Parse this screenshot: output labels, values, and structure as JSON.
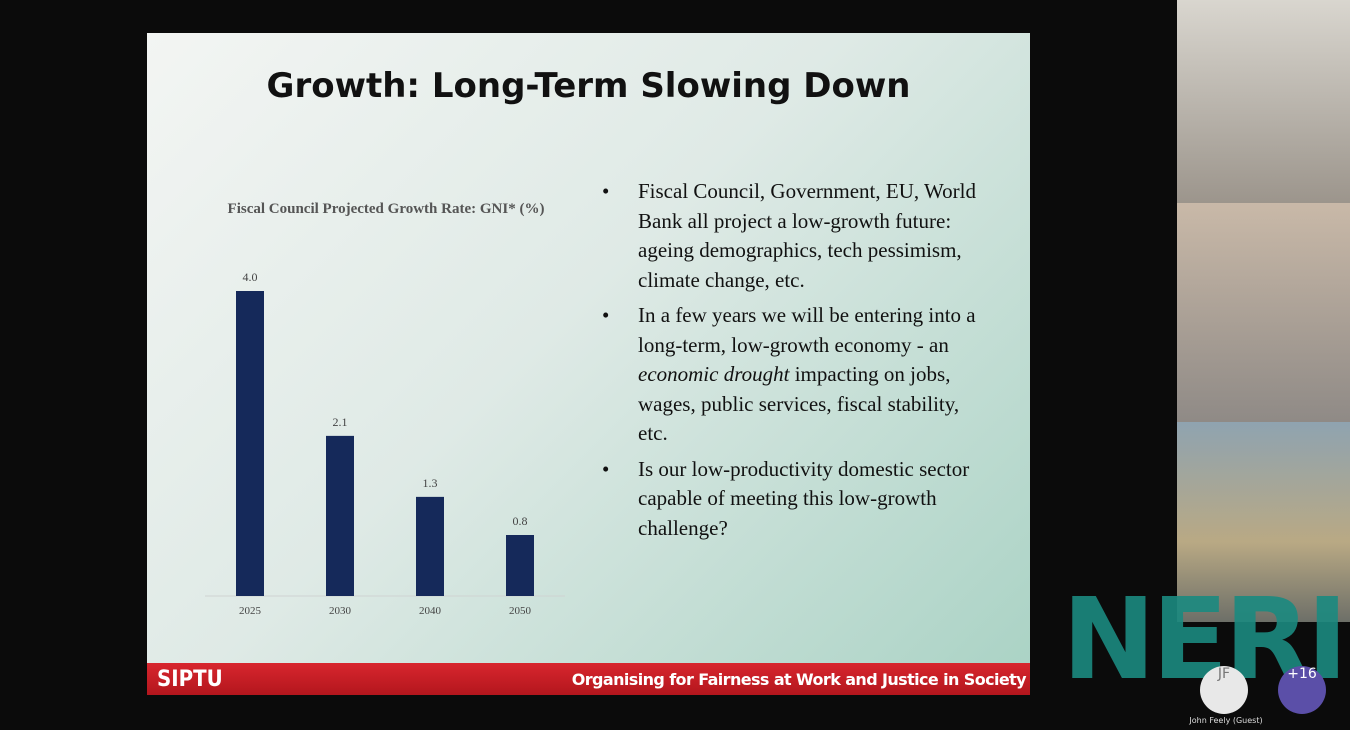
{
  "slide": {
    "title": "Growth:  Long-Term Slowing Down",
    "bullets": [
      [
        {
          "text": "Fiscal Council, Government, EU, World Bank all project a low-growth future:  ageing demographics, tech pessimism, climate change, etc."
        }
      ],
      [
        {
          "text": "In a few years we will be entering into a long-term, low-growth economy -  an "
        },
        {
          "text": "economic drought",
          "italic": true
        },
        {
          "text": " impacting on jobs, wages, public services, fiscal stability, etc."
        }
      ],
      [
        {
          "text": "Is our low-productivity domestic sector capable of meeting this low-growth challenge?"
        }
      ]
    ],
    "footer_logo": "SIPTU",
    "footer_slogan": "Organising for Fairness at Work and Justice in Society"
  },
  "chart_data": {
    "type": "bar",
    "title": "Fiscal Council Projected Growth Rate: GNI* (%)",
    "categories": [
      "2025",
      "2030",
      "2040",
      "2050"
    ],
    "values": [
      4.0,
      2.1,
      1.3,
      0.8
    ],
    "value_labels": [
      "4.0",
      "2.1",
      "1.3",
      "0.8"
    ],
    "color": "#15295a"
  },
  "overlay": {
    "logo": "NERI",
    "participants": [
      {
        "initials": "JF",
        "name": "John Feely (Guest)"
      },
      {
        "initials": "+16"
      }
    ]
  }
}
